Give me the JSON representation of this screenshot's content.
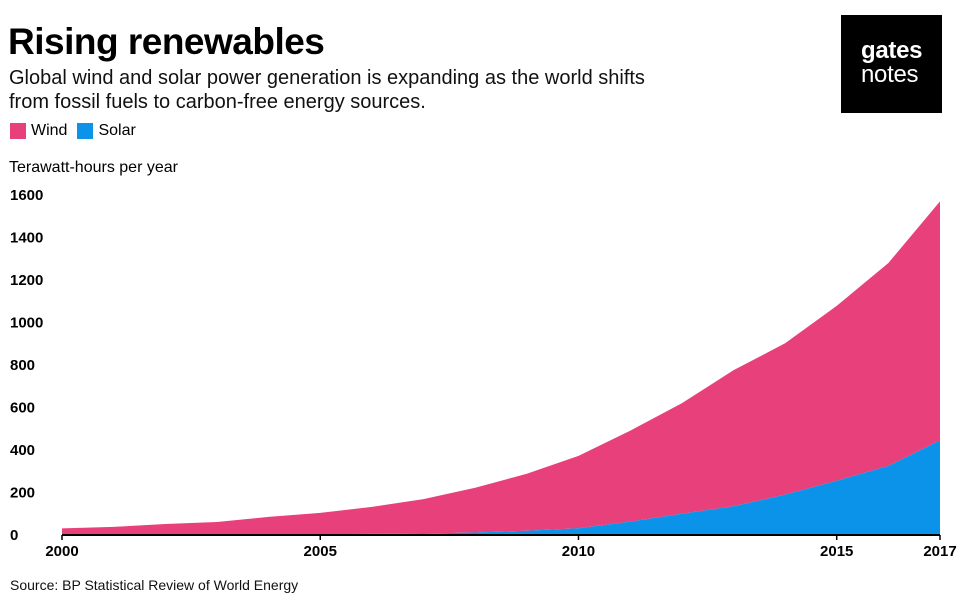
{
  "header": {
    "title": "Rising renewables",
    "subtitle_line1": "Global wind and solar power generation is expanding as the world shifts",
    "subtitle_line2": "from fossil fuels to carbon-free energy sources."
  },
  "logo": {
    "line1": "gates",
    "line2": "notes"
  },
  "legend": [
    {
      "label": "Wind",
      "color": "#e8407a"
    },
    {
      "label": "Solar",
      "color": "#0a93e8"
    }
  ],
  "source": "Source: BP Statistical Review of World Energy",
  "chart_data": {
    "type": "area",
    "stacked": true,
    "title": "Rising renewables",
    "ylabel": "Terawatt-hours per year",
    "xlabel": "",
    "x": [
      2000,
      2001,
      2002,
      2003,
      2004,
      2005,
      2006,
      2007,
      2008,
      2009,
      2010,
      2011,
      2012,
      2013,
      2014,
      2015,
      2016,
      2017
    ],
    "series": [
      {
        "name": "Solar",
        "color": "#0a93e8",
        "values": [
          1,
          1,
          2,
          3,
          3,
          4,
          5,
          7,
          12,
          20,
          32,
          63,
          100,
          135,
          190,
          255,
          325,
          445
        ]
      },
      {
        "name": "Wind",
        "color": "#e8407a",
        "values": [
          30,
          37,
          50,
          58,
          82,
          100,
          127,
          162,
          210,
          268,
          340,
          428,
          520,
          640,
          712,
          823,
          955,
          1125
        ]
      }
    ],
    "xticks": [
      2000,
      2005,
      2010,
      2015,
      2017
    ],
    "yticks": [
      0,
      200,
      400,
      600,
      800,
      1000,
      1200,
      1400,
      1600
    ],
    "ylim": [
      0,
      1600
    ],
    "xlim": [
      2000,
      2017
    ],
    "grid": false,
    "legend_position": "top-left"
  }
}
